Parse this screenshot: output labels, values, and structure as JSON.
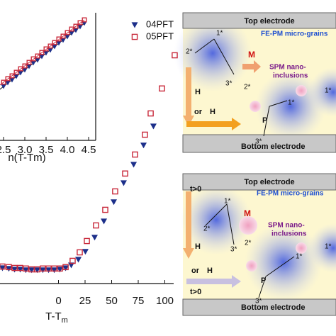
{
  "chart_data": [
    {
      "type": "scatter",
      "x_label": "T-T",
      "x_label_sub": "m",
      "xlim": [
        -55,
        112
      ],
      "ylim": [
        0,
        100
      ],
      "xticks": [
        0,
        25,
        50,
        75,
        100
      ],
      "legend": "top-right",
      "series": [
        {
          "name": "04PFT",
          "color": "#1c2f8a",
          "marker": "triangle-down",
          "x": [
            -52.7,
            -46.7,
            -41.3,
            -36,
            -30.7,
            -25.3,
            -20,
            -14.7,
            -9.3,
            -4,
            1.3,
            6.7,
            12,
            18.7,
            25.3,
            34,
            42.7,
            52,
            61.3,
            70.7,
            80,
            89.3
          ],
          "values": [
            5.5,
            5.3,
            5,
            5,
            4.8,
            4.8,
            4.8,
            4.8,
            4.8,
            4.8,
            5,
            5.5,
            6.5,
            8.5,
            11.3,
            16.3,
            22,
            28.8,
            35.5,
            42,
            48.8,
            55.5
          ]
        },
        {
          "name": "05PFT",
          "color": "#c8283a",
          "marker": "square-open",
          "x": [
            -52.7,
            -46.7,
            -41.3,
            -36,
            -30.7,
            -25.3,
            -20,
            -14.7,
            -9.3,
            -4,
            1.3,
            6.7,
            13.3,
            20,
            26.7,
            35.3,
            44,
            53.3,
            62.7,
            72,
            81.3,
            86.7,
            97.3,
            109.3
          ],
          "values": [
            6,
            5.8,
            5.5,
            5.5,
            5.3,
            5,
            5,
            5.3,
            5.3,
            5.3,
            5.3,
            5.8,
            8,
            11,
            15,
            20.5,
            26,
            32.5,
            38.8,
            45.5,
            52.5,
            60,
            68.8,
            80.5
          ]
        }
      ]
    },
    {
      "type": "scatter",
      "x_label": "n(T-Tm)",
      "xlim": [
        2.4,
        4.7
      ],
      "ylim": [
        0,
        180
      ],
      "xticks": [
        2.5,
        {
          "value": 3,
          "label": "3.0"
        },
        3.5,
        {
          "value": 4,
          "label": "4.0"
        },
        4.5
      ],
      "fit_lines": true,
      "series": [
        {
          "color": "#1c2f8a",
          "marker": "triangle-down",
          "x": [
            2.5,
            2.6,
            2.7,
            2.8,
            2.9,
            3,
            3.1,
            3.2,
            3.3,
            3.4,
            3.5,
            3.6,
            3.7,
            3.8,
            3.9,
            4,
            4.1,
            4.2,
            4.3,
            4.4
          ],
          "values": [
            76,
            81,
            85,
            90,
            95,
            99,
            104,
            109,
            113,
            118,
            123,
            127,
            132,
            137,
            141,
            146,
            151,
            155,
            160,
            165
          ]
        },
        {
          "color": "#c8283a",
          "marker": "square-open",
          "x": [
            2.5,
            2.6,
            2.7,
            2.8,
            2.9,
            3,
            3.1,
            3.2,
            3.3,
            3.4,
            3.5,
            3.6,
            3.7,
            3.8,
            3.9,
            4,
            4.1,
            4.2,
            4.3,
            4.4
          ],
          "values": [
            82,
            87,
            91,
            96,
            101,
            105,
            110,
            115,
            119,
            124,
            129,
            133,
            138,
            143,
            147,
            152,
            157,
            161,
            166,
            170
          ]
        }
      ]
    }
  ],
  "diagrams": [
    {
      "top": "Top electrode",
      "grains": "FE-PM micro-grains",
      "spm1": "SPM nano-",
      "spm2": "inclusions",
      "m": "M",
      "p": "P",
      "h1": "H",
      "or": "or",
      "h2": "H",
      "bottom": "Bottom electrode",
      "s1a": "1*",
      "s2a": "2*",
      "s3a": "3*",
      "s2b": "2*",
      "s1b": "1*",
      "s3b": "3*",
      "s1c": "1*"
    },
    {
      "top": "Top electrode",
      "grains": "FE-PM micro-grains",
      "t1": "t>0",
      "spm1": "SPM nano-",
      "spm2": "inclusions",
      "m": "M",
      "p": "P",
      "h1": "H",
      "or": "or",
      "h2": "H",
      "t2": "t>0",
      "bottom": "Bottom electrode",
      "s1a": "1*",
      "s2a": "2*",
      "s3a": "3*",
      "s2b": "2*",
      "s1b": "1*",
      "s3b": "3*",
      "s1c": "1*"
    }
  ]
}
